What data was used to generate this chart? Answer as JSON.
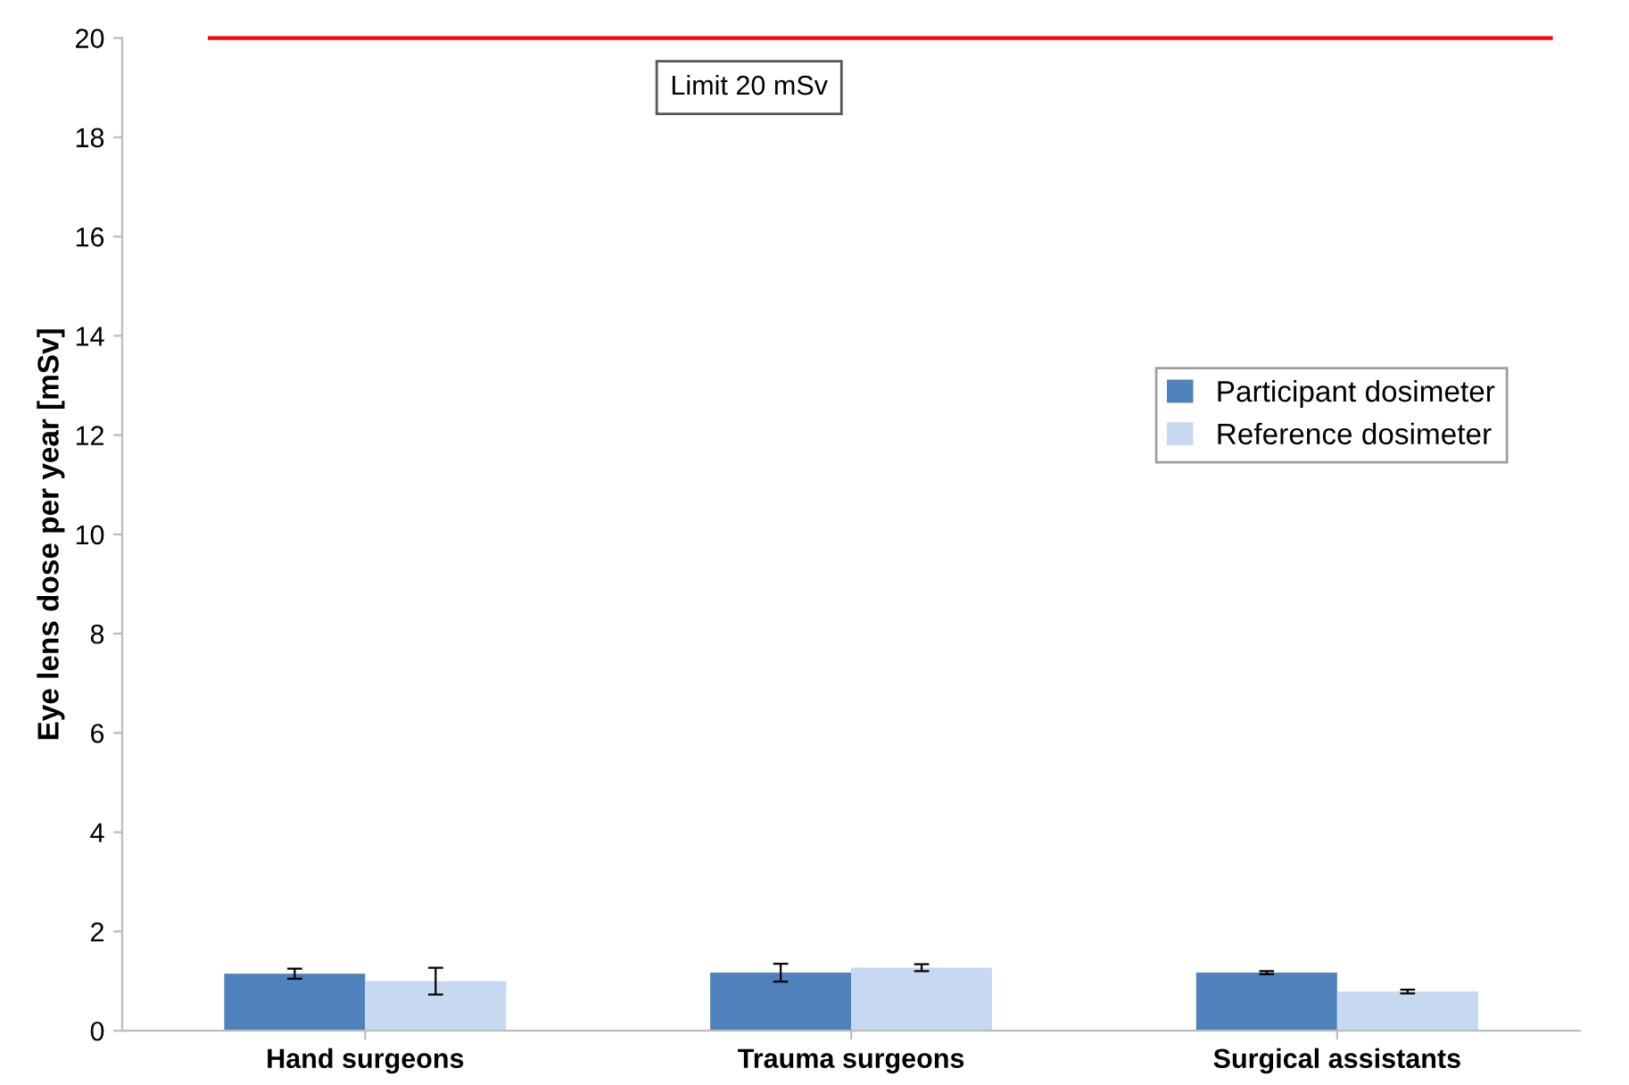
{
  "chart_data": {
    "type": "bar",
    "ylabel": "Eye lens dose per year [mSv]",
    "categories": [
      "Hand surgeons",
      "Trauma surgeons",
      "Surgical assistants"
    ],
    "series": [
      {
        "name": "Participant dosimeter",
        "color": "#4f81bd",
        "values": [
          1.15,
          1.17,
          1.17
        ],
        "errors": [
          0.1,
          0.18,
          0.03
        ]
      },
      {
        "name": "Reference dosimeter",
        "color": "#c6d9f1",
        "values": [
          1.0,
          1.27,
          0.79
        ],
        "errors": [
          0.27,
          0.07,
          0.04
        ]
      }
    ],
    "ylim": [
      0,
      20
    ],
    "yticks": [
      0,
      2,
      4,
      6,
      8,
      10,
      12,
      14,
      16,
      18,
      20
    ],
    "ref_lines": [
      {
        "axis": "y",
        "value": 20,
        "label": "Limit 20 mSv",
        "color": "#ff0000",
        "line_style": "solid"
      }
    ],
    "grid": false,
    "legend": "right"
  }
}
